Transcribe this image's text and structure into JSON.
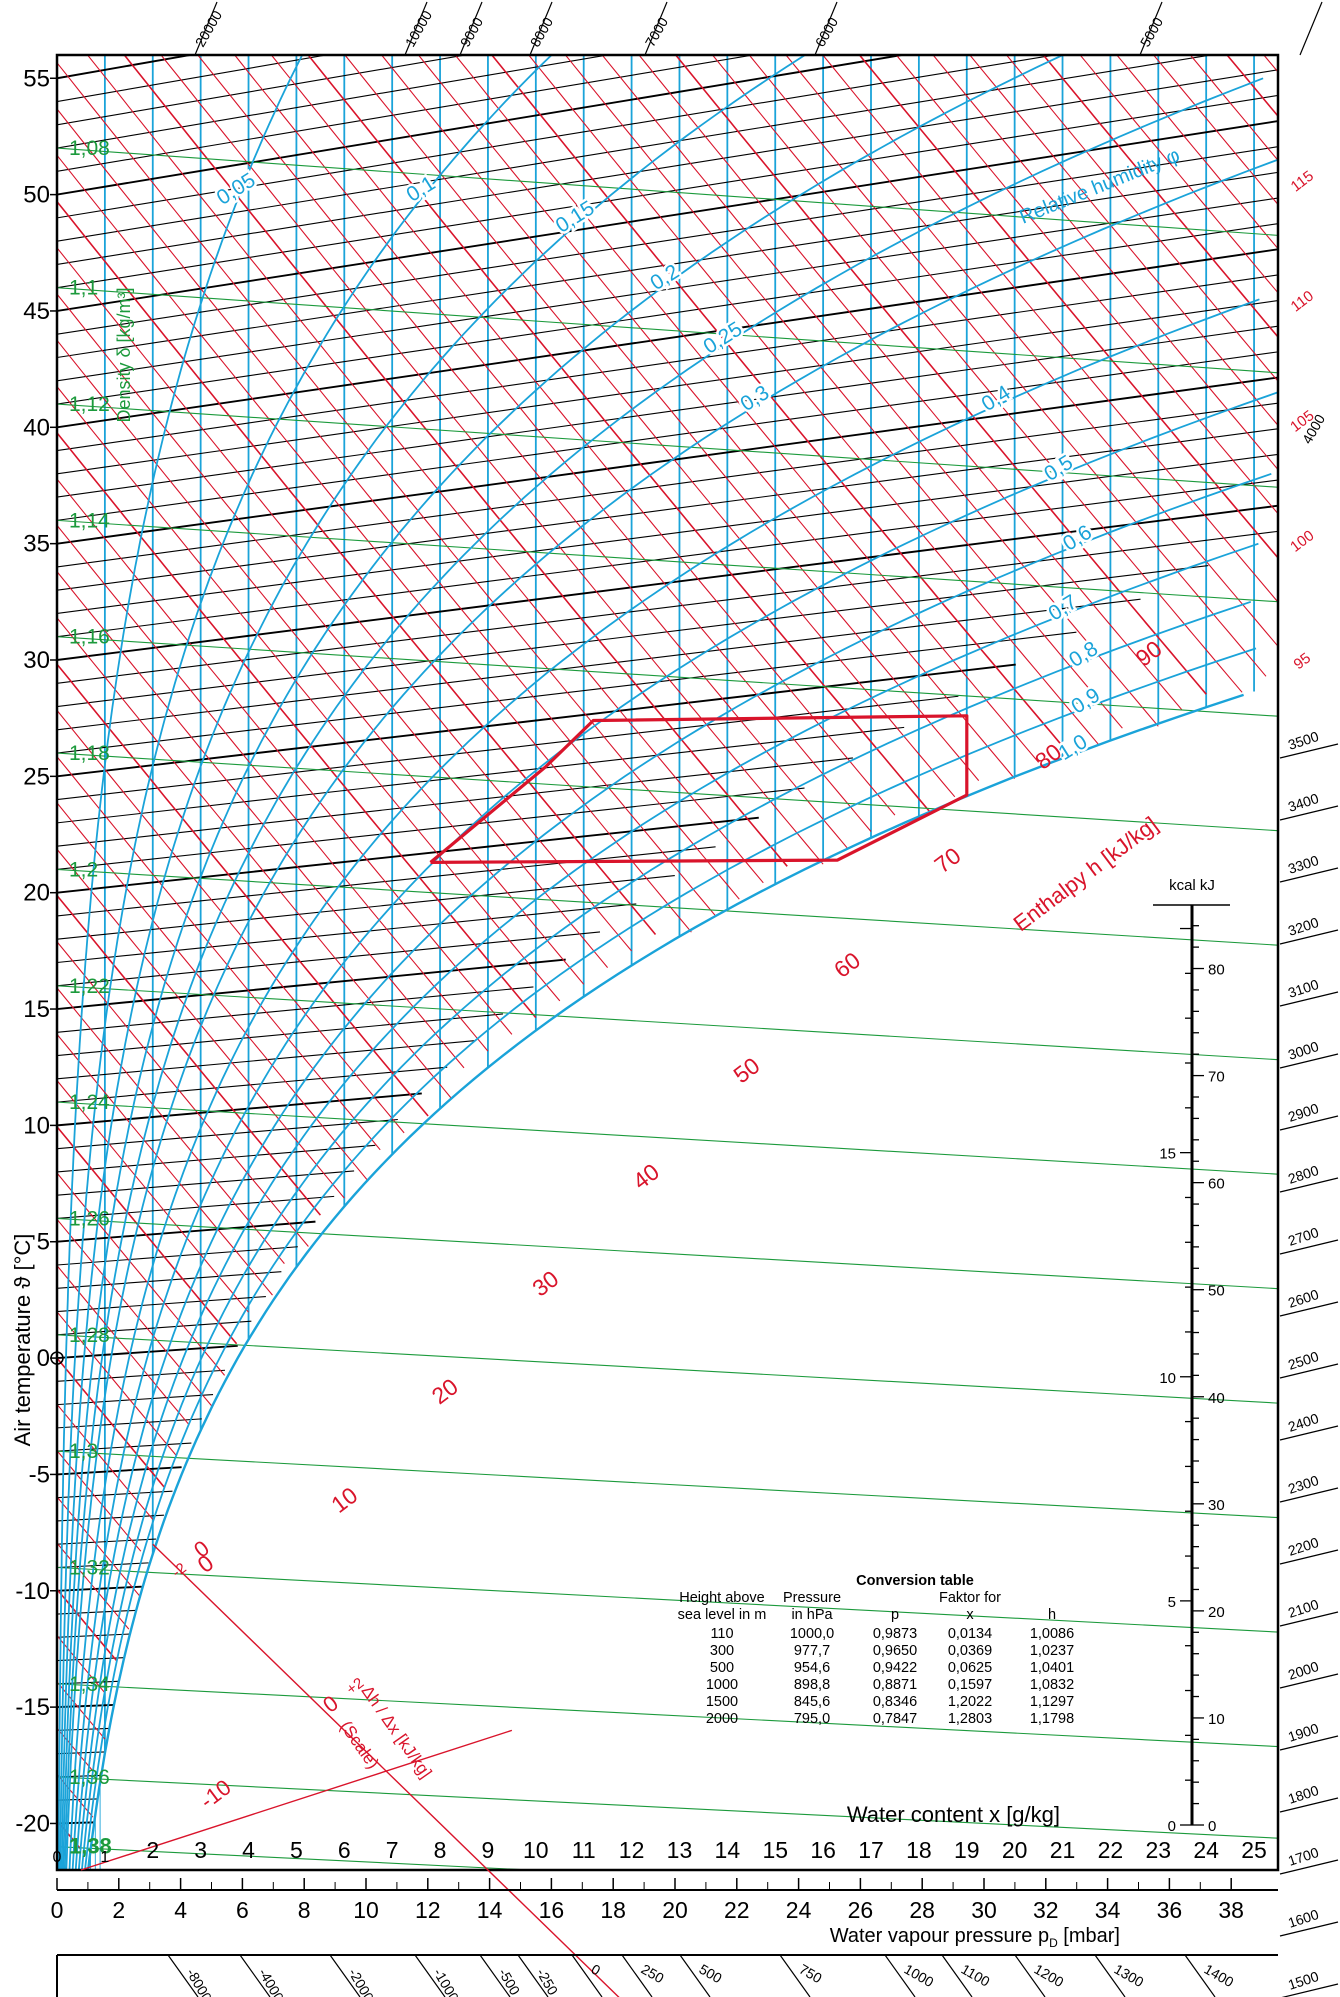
{
  "chart_data": {
    "type": "psychrometric",
    "axes": {
      "y_label": "Air temperature ϑ [°C]",
      "y_ticks": [
        -20,
        -15,
        -10,
        -5,
        0,
        5,
        10,
        15,
        20,
        25,
        30,
        35,
        40,
        45,
        50,
        55
      ],
      "y_range": [
        -22,
        56
      ],
      "x_label": "Water content x [g/kg]",
      "x_ticks": [
        0,
        1,
        2,
        3,
        4,
        5,
        6,
        7,
        8,
        9,
        10,
        11,
        12,
        13,
        14,
        15,
        16,
        17,
        18,
        19,
        20,
        21,
        22,
        23,
        24,
        25
      ],
      "x_range": [
        0,
        25.5
      ],
      "pd_label": "Water vapour pressure p",
      "pd_sub": "D",
      "pd_unit": " [mbar]",
      "pd_ticks": [
        0,
        2,
        4,
        6,
        8,
        10,
        12,
        14,
        16,
        18,
        20,
        22,
        24,
        26,
        28,
        30,
        32,
        34,
        36,
        38
      ]
    },
    "relative_humidity": {
      "label": "Relative humidity φ",
      "curves": [
        "0,05",
        "0,1",
        "0,15",
        "0,2",
        "0,25",
        "0,3",
        "0,4",
        "0,5",
        "0,6",
        "0,7",
        "0,8",
        "0,9",
        "1,0"
      ],
      "values": [
        0.05,
        0.1,
        0.15,
        0.2,
        0.25,
        0.3,
        0.4,
        0.5,
        0.6,
        0.7,
        0.8,
        0.9,
        1.0
      ]
    },
    "density": {
      "label": "Density δ [kg/m³]",
      "values": [
        "1,08",
        "1,1",
        "1,12",
        "1,14",
        "1,16",
        "1,18",
        "1,2",
        "1,22",
        "1,24",
        "1,26",
        "1,28",
        "1,3",
        "1,32",
        "1,34",
        "1,36",
        "1,38"
      ],
      "at_temperature": [
        52,
        46,
        41,
        36,
        31,
        26,
        21,
        16,
        11,
        6,
        1,
        -4,
        -9,
        -14,
        -18,
        -21
      ]
    },
    "enthalpy": {
      "label": "Enthalpy h [kJ/kg]",
      "labels": [
        0,
        10,
        20,
        30,
        40,
        50,
        60,
        70,
        80,
        90
      ],
      "right_labels": [
        "95",
        "100",
        "105",
        "110",
        "115"
      ]
    },
    "comfort_zone": [
      [
        7.8,
        21.3
      ],
      [
        10.2,
        25.4
      ],
      [
        11.2,
        27.4
      ],
      [
        19.0,
        27.6
      ],
      [
        19.0,
        24.2
      ],
      [
        16.3,
        21.4
      ],
      [
        7.8,
        21.3
      ]
    ],
    "top_scale": [
      "20000",
      "10000",
      "9000",
      "8000",
      "7000",
      "6000",
      "5000",
      "4000"
    ],
    "right_scale": [
      "3500",
      "3400",
      "3300",
      "3200",
      "3100",
      "3000",
      "2900",
      "2800",
      "2700",
      "2600",
      "2500",
      "2400",
      "2300",
      "2200",
      "2100",
      "2000",
      "1900",
      "1800",
      "1700",
      "1600",
      "1500"
    ],
    "bottom_scale": [
      "-8000",
      "-4000",
      "-2000",
      "-1000",
      "-500",
      "-250",
      "0",
      "250",
      "500",
      "750",
      "1000",
      "1100",
      "1200",
      "1300",
      "1400"
    ],
    "scale_label_1": "Δh / Δx [kJ/kg]",
    "scale_label_2": "(Scale)",
    "scale_marks": [
      "-2",
      "0",
      "0",
      "+2",
      "-10"
    ],
    "energy_scale": {
      "header": "kcal kJ",
      "kcal": [
        "0",
        "5",
        "10",
        "15"
      ],
      "kj": [
        "0",
        "10",
        "20",
        "30",
        "40",
        "50",
        "60",
        "70",
        "80"
      ]
    },
    "conversion_table": {
      "title": "Conversion table",
      "header_1": [
        "Height above",
        "Pressure",
        "",
        "Faktor for",
        ""
      ],
      "header_2": [
        "sea level in m",
        "in hPa",
        "p",
        "x",
        "h"
      ],
      "rows": [
        [
          "110",
          "1000,0",
          "0,9873",
          "0,0134",
          "1,0086"
        ],
        [
          "300",
          "977,7",
          "0,9650",
          "0,0369",
          "1,0237"
        ],
        [
          "500",
          "954,6",
          "0,9422",
          "0,0625",
          "1,0401"
        ],
        [
          "1000",
          "898,8",
          "0,8871",
          "0,1597",
          "1,0832"
        ],
        [
          "1500",
          "845,6",
          "0,8346",
          "1,2022",
          "1,1297"
        ],
        [
          "2000",
          "795,0",
          "0,7847",
          "1,2803",
          "1,1798"
        ]
      ]
    }
  }
}
